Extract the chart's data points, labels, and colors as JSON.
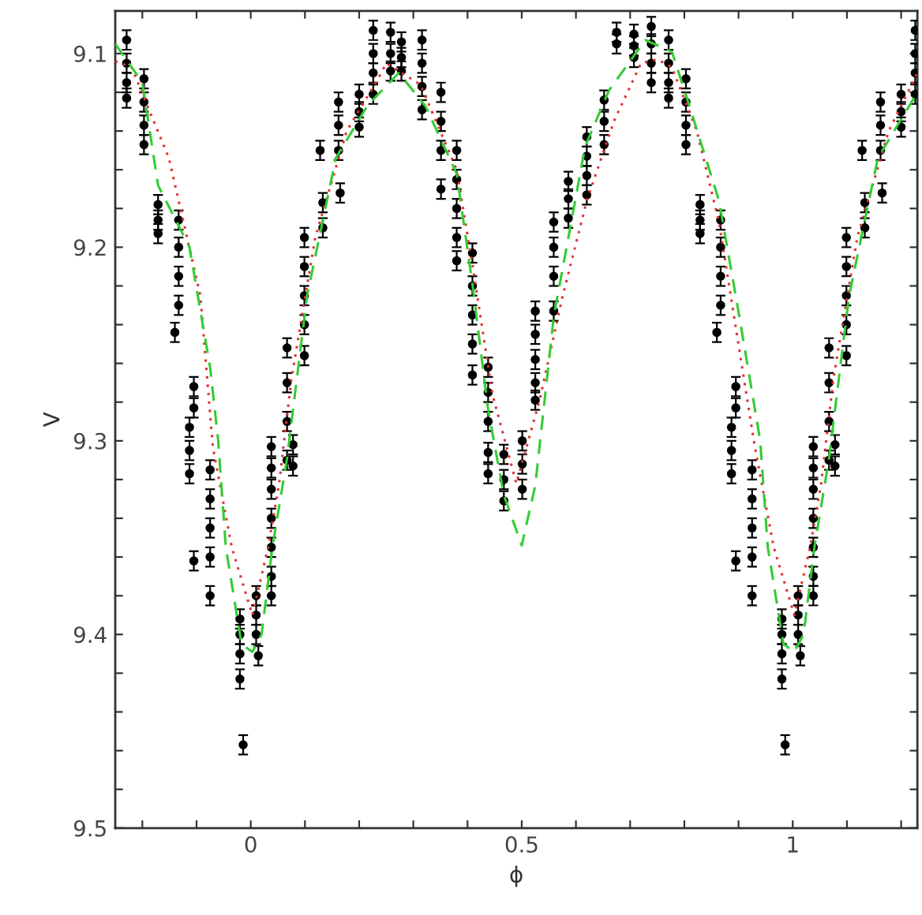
{
  "chart_data": {
    "type": "scatter",
    "xlabel": "ϕ",
    "ylabel": "V",
    "xlim": [
      -0.25,
      1.23
    ],
    "ylim": [
      9.5,
      9.078
    ],
    "xticks": [
      {
        "value": -0.2,
        "label": null
      },
      {
        "value": -0.1,
        "label": null
      },
      {
        "value": 0,
        "label": "0"
      },
      {
        "value": 0.1,
        "label": null
      },
      {
        "value": 0.2,
        "label": null
      },
      {
        "value": 0.3,
        "label": null
      },
      {
        "value": 0.4,
        "label": null
      },
      {
        "value": 0.5,
        "label": "0.5"
      },
      {
        "value": 0.6,
        "label": null
      },
      {
        "value": 0.7,
        "label": null
      },
      {
        "value": 0.8,
        "label": null
      },
      {
        "value": 0.9,
        "label": null
      },
      {
        "value": 1,
        "label": "1"
      },
      {
        "value": 1.1,
        "label": null
      },
      {
        "value": 1.2,
        "label": null
      }
    ],
    "yticks": [
      9.1,
      {
        "value": 9.12,
        "label": null
      },
      {
        "value": 9.14,
        "label": null
      },
      {
        "value": 9.16,
        "label": null
      },
      {
        "value": 9.18,
        "label": null
      },
      9.2,
      {
        "value": 9.22,
        "label": null
      },
      {
        "value": 9.24,
        "label": null
      },
      {
        "value": 9.26,
        "label": null
      },
      {
        "value": 9.28,
        "label": null
      },
      9.3,
      {
        "value": 9.32,
        "label": null
      },
      {
        "value": 9.34,
        "label": null
      },
      {
        "value": 9.36,
        "label": null
      },
      {
        "value": 9.38,
        "label": null
      },
      9.4,
      {
        "value": 9.42,
        "label": null
      },
      {
        "value": 9.44,
        "label": null
      },
      {
        "value": 9.46,
        "label": null
      },
      {
        "value": 9.48,
        "label": null
      },
      9.5
    ],
    "grid": false,
    "legend": false,
    "series": [
      {
        "color": "#000000",
        "marker": "circle",
        "x": [
          -0.229,
          -0.229,
          -0.229,
          -0.229,
          -0.197,
          -0.197,
          -0.197,
          -0.197,
          -0.171,
          -0.171,
          -0.171,
          -0.133,
          -0.133,
          -0.133,
          -0.133,
          -0.14,
          -0.105,
          -0.105,
          -0.113,
          -0.113,
          -0.113,
          -0.105,
          -0.075,
          -0.075,
          -0.075,
          -0.075,
          -0.075,
          -0.02,
          -0.02,
          -0.02,
          -0.02,
          -0.014,
          0.01,
          0.01,
          0.01,
          0.014,
          0.038,
          0.038,
          0.038,
          0.038,
          0.038,
          0.038,
          0.038,
          0.078,
          0.078,
          0.067,
          0.067,
          0.067,
          0.067,
          0.099,
          0.099,
          0.099,
          0.099,
          0.099,
          0.133,
          0.133,
          0.128,
          0.162,
          0.162,
          0.162,
          0.165,
          0.2,
          0.2,
          0.2,
          0.226,
          0.226,
          0.226,
          0.226
        ],
        "values": [
          9.093,
          9.105,
          9.115,
          9.123,
          9.113,
          9.125,
          9.137,
          9.147,
          9.178,
          9.186,
          9.193,
          9.186,
          9.2,
          9.215,
          9.23,
          9.244,
          9.272,
          9.283,
          9.293,
          9.305,
          9.317,
          9.362,
          9.315,
          9.33,
          9.345,
          9.36,
          9.38,
          9.392,
          9.4,
          9.41,
          9.423,
          9.457,
          9.38,
          9.39,
          9.4,
          9.411,
          9.303,
          9.314,
          9.325,
          9.34,
          9.355,
          9.37,
          9.38,
          9.302,
          9.313,
          9.252,
          9.27,
          9.29,
          9.31,
          9.195,
          9.21,
          9.225,
          9.24,
          9.256,
          9.177,
          9.19,
          9.15,
          9.125,
          9.137,
          9.15,
          9.172,
          9.121,
          9.13,
          9.138,
          9.088,
          9.1,
          9.11,
          9.121
        ],
        "errors": [
          0.005,
          0.005,
          0.005,
          0.005,
          0.005,
          0.005,
          0.005,
          0.005,
          0.005,
          0.005,
          0.005,
          0.005,
          0.005,
          0.005,
          0.005,
          0.005,
          0.005,
          0.005,
          0.005,
          0.005,
          0.005,
          0.005,
          0.005,
          0.005,
          0.005,
          0.005,
          0.005,
          0.005,
          0.005,
          0.005,
          0.005,
          0.005,
          0.005,
          0.005,
          0.005,
          0.005,
          0.005,
          0.005,
          0.005,
          0.005,
          0.005,
          0.005,
          0.005,
          0.005,
          0.005,
          0.005,
          0.005,
          0.005,
          0.005,
          0.005,
          0.005,
          0.005,
          0.005,
          0.005,
          0.005,
          0.005,
          0.005,
          0.005,
          0.005,
          0.005,
          0.005,
          0.005,
          0.005,
          0.005,
          0.005,
          0.005,
          0.005,
          0.005
        ]
      },
      {
        "color": "#000000",
        "marker": "circle",
        "x": [
          0.258,
          0.258,
          0.258,
          0.278,
          0.278,
          0.278,
          0.316,
          0.316,
          0.316,
          0.316,
          0.351,
          0.351,
          0.351,
          0.351,
          0.38,
          0.38,
          0.38,
          0.38,
          0.38,
          0.409,
          0.409,
          0.409,
          0.409,
          0.409,
          0.438,
          0.438,
          0.438,
          0.438,
          0.438,
          0.467,
          0.467,
          0.467,
          0.501,
          0.501,
          0.501,
          0.525,
          0.525,
          0.525,
          0.525,
          0.525,
          0.559,
          0.559,
          0.559,
          0.559,
          0.586,
          0.586,
          0.586,
          0.62,
          0.62,
          0.62,
          0.62,
          0.652,
          0.652,
          0.652,
          0.675,
          0.675,
          0.707,
          0.707,
          0.707,
          0.739,
          0.739,
          0.739,
          0.739
        ],
        "values": [
          9.089,
          9.1,
          9.109,
          9.094,
          9.102,
          9.109,
          9.093,
          9.105,
          9.117,
          9.129,
          9.12,
          9.135,
          9.15,
          9.17,
          9.15,
          9.165,
          9.18,
          9.195,
          9.207,
          9.203,
          9.22,
          9.235,
          9.25,
          9.266,
          9.262,
          9.275,
          9.29,
          9.306,
          9.317,
          9.307,
          9.32,
          9.331,
          9.3,
          9.312,
          9.325,
          9.233,
          9.245,
          9.258,
          9.27,
          9.279,
          9.187,
          9.2,
          9.215,
          9.233,
          9.166,
          9.175,
          9.185,
          9.143,
          9.153,
          9.163,
          9.173,
          9.124,
          9.135,
          9.147,
          9.089,
          9.095,
          9.09,
          9.096,
          9.102,
          9.086,
          9.095,
          9.105,
          9.115
        ],
        "errors": [
          0.005,
          0.005,
          0.005,
          0.005,
          0.005,
          0.005,
          0.005,
          0.005,
          0.005,
          0.005,
          0.005,
          0.005,
          0.005,
          0.005,
          0.005,
          0.005,
          0.005,
          0.005,
          0.005,
          0.005,
          0.005,
          0.005,
          0.005,
          0.005,
          0.005,
          0.005,
          0.005,
          0.005,
          0.005,
          0.005,
          0.005,
          0.005,
          0.005,
          0.005,
          0.005,
          0.005,
          0.005,
          0.005,
          0.005,
          0.005,
          0.005,
          0.005,
          0.005,
          0.005,
          0.005,
          0.005,
          0.005,
          0.005,
          0.005,
          0.005,
          0.005,
          0.005,
          0.005,
          0.005,
          0.005,
          0.005,
          0.005,
          0.005,
          0.005,
          0.005,
          0.005,
          0.005,
          0.005
        ]
      },
      {
        "color": "#000000",
        "marker": "circle",
        "x": [
          0.771,
          0.771,
          0.771,
          0.771,
          0.803,
          0.803,
          0.803,
          0.803,
          0.829,
          0.829,
          0.829,
          0.867,
          0.867,
          0.867,
          0.867,
          0.86,
          0.895,
          0.895,
          0.887,
          0.887,
          0.887,
          0.895,
          0.925,
          0.925,
          0.925,
          0.925,
          0.925,
          0.98,
          0.98,
          0.98,
          0.98,
          0.986,
          1.01,
          1.01,
          1.01,
          1.014,
          1.038,
          1.038,
          1.038,
          1.038,
          1.038,
          1.038,
          1.038,
          1.078,
          1.078,
          1.067,
          1.067,
          1.067,
          1.067,
          1.099,
          1.099,
          1.099,
          1.099,
          1.099,
          1.133,
          1.133,
          1.128,
          1.162,
          1.162,
          1.162,
          1.165,
          1.2,
          1.2,
          1.2,
          1.226,
          1.226,
          1.226,
          1.226
        ],
        "values": [
          9.093,
          9.105,
          9.115,
          9.123,
          9.113,
          9.125,
          9.137,
          9.147,
          9.178,
          9.186,
          9.193,
          9.186,
          9.2,
          9.215,
          9.23,
          9.244,
          9.272,
          9.283,
          9.293,
          9.305,
          9.317,
          9.362,
          9.315,
          9.33,
          9.345,
          9.36,
          9.38,
          9.392,
          9.4,
          9.41,
          9.423,
          9.457,
          9.38,
          9.39,
          9.4,
          9.411,
          9.303,
          9.314,
          9.325,
          9.34,
          9.355,
          9.37,
          9.38,
          9.302,
          9.313,
          9.252,
          9.27,
          9.29,
          9.31,
          9.195,
          9.21,
          9.225,
          9.24,
          9.256,
          9.177,
          9.19,
          9.15,
          9.125,
          9.137,
          9.15,
          9.172,
          9.121,
          9.13,
          9.138,
          9.088,
          9.1,
          9.11,
          9.121
        ],
        "errors": [
          0.005,
          0.005,
          0.005,
          0.005,
          0.005,
          0.005,
          0.005,
          0.005,
          0.005,
          0.005,
          0.005,
          0.005,
          0.005,
          0.005,
          0.005,
          0.005,
          0.005,
          0.005,
          0.005,
          0.005,
          0.005,
          0.005,
          0.005,
          0.005,
          0.005,
          0.005,
          0.005,
          0.005,
          0.005,
          0.005,
          0.005,
          0.005,
          0.005,
          0.005,
          0.005,
          0.005,
          0.005,
          0.005,
          0.005,
          0.005,
          0.005,
          0.005,
          0.005,
          0.005,
          0.005,
          0.005,
          0.005,
          0.005,
          0.005,
          0.005,
          0.005,
          0.005,
          0.005,
          0.005,
          0.005,
          0.005,
          0.005,
          0.005,
          0.005,
          0.005,
          0.005,
          0.005,
          0.005,
          0.005,
          0.005,
          0.005,
          0.005,
          0.005
        ]
      },
      {
        "type": "line",
        "color": "#e03030",
        "line_style": "dotted",
        "marker": "none",
        "x": [
          -0.25,
          -0.22,
          -0.151,
          -0.093,
          -0.07,
          -0.035,
          0.003,
          0.032,
          0.052,
          0.075,
          0.119,
          0.177,
          0.235,
          0.25,
          0.313,
          0.38,
          0.409,
          0.446,
          0.49,
          0.533,
          0.574,
          0.62,
          0.67,
          0.72,
          0.75,
          0.777,
          0.823,
          0.864,
          0.91,
          0.93,
          0.965,
          1.003,
          1.032,
          1.052,
          1.075,
          1.119,
          1.177,
          1.23
        ],
        "values": [
          9.104,
          9.107,
          9.154,
          9.225,
          9.303,
          9.355,
          9.39,
          9.355,
          9.323,
          9.268,
          9.195,
          9.14,
          9.113,
          9.105,
          9.116,
          9.16,
          9.209,
          9.276,
          9.322,
          9.279,
          9.227,
          9.176,
          9.135,
          9.105,
          9.103,
          9.107,
          9.14,
          9.187,
          9.268,
          9.303,
          9.355,
          9.39,
          9.355,
          9.323,
          9.268,
          9.195,
          9.14,
          9.11
        ]
      },
      {
        "type": "line",
        "color": "#33cc33",
        "line_style": "dashed",
        "marker": "none",
        "x": [
          -0.25,
          -0.2,
          -0.171,
          -0.113,
          -0.075,
          -0.06,
          -0.046,
          -0.017,
          0.003,
          0.02,
          0.04,
          0.067,
          0.104,
          0.157,
          0.215,
          0.273,
          0.322,
          0.38,
          0.409,
          0.438,
          0.467,
          0.5,
          0.525,
          0.559,
          0.617,
          0.661,
          0.728,
          0.777,
          0.806,
          0.864,
          0.901,
          0.94,
          0.954,
          0.983,
          1.003,
          1.02,
          1.04,
          1.067,
          1.104,
          1.157,
          1.215,
          1.23
        ],
        "values": [
          9.095,
          9.115,
          9.168,
          9.2,
          9.262,
          9.3,
          9.355,
          9.405,
          9.409,
          9.4,
          9.355,
          9.309,
          9.225,
          9.154,
          9.127,
          9.11,
          9.127,
          9.162,
          9.219,
          9.284,
          9.328,
          9.354,
          9.323,
          9.236,
          9.148,
          9.119,
          9.093,
          9.099,
          9.124,
          9.176,
          9.235,
          9.3,
          9.355,
          9.405,
          9.409,
          9.4,
          9.355,
          9.309,
          9.225,
          9.154,
          9.127,
          9.12
        ]
      }
    ]
  }
}
